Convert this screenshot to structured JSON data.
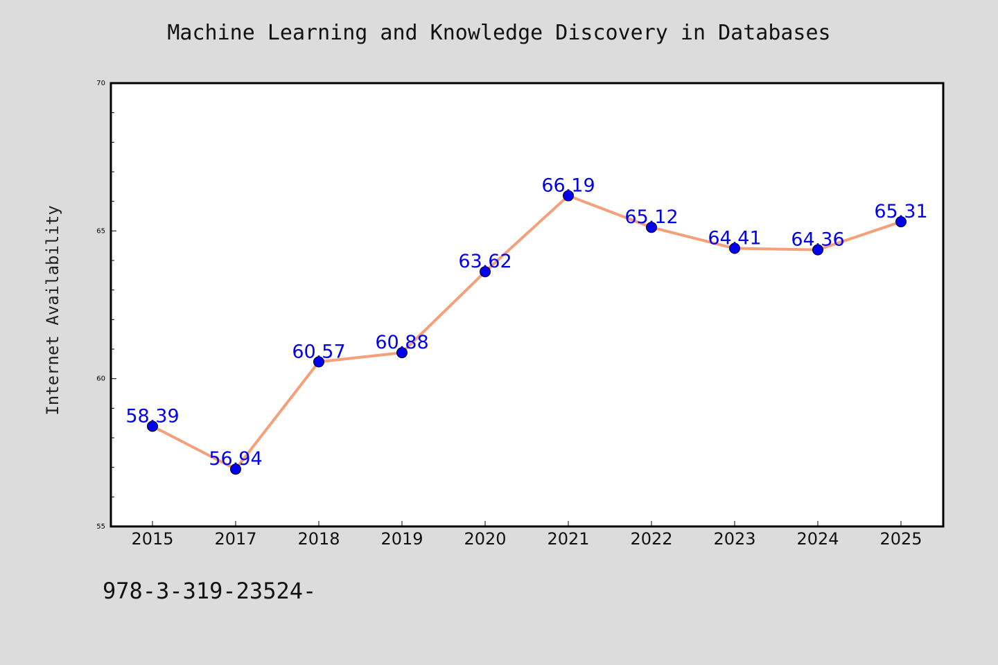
{
  "chart_data": {
    "type": "line",
    "title": "Machine Learning and Knowledge Discovery in Databases",
    "xlabel": "",
    "ylabel": "Internet Availability",
    "categories": [
      "2015",
      "2017",
      "2018",
      "2019",
      "2020",
      "2021",
      "2022",
      "2023",
      "2024",
      "2025"
    ],
    "values": [
      58.39,
      56.94,
      60.57,
      60.88,
      63.62,
      66.19,
      65.12,
      64.41,
      64.36,
      65.31
    ],
    "data_labels": [
      "58.39",
      "56.94",
      "60.57",
      "60.88",
      "63.62",
      "66.19",
      "65.12",
      "64.41",
      "64.36",
      "65.31"
    ],
    "ylim": [
      55,
      70
    ],
    "y_major_ticks": [
      55,
      60,
      65,
      70
    ],
    "y_minor_step": 1,
    "grid": false,
    "line_color": "#f4a07a",
    "marker_color": "#0000ee",
    "label_color": "#0000ee"
  },
  "footer": {
    "code": "978-3-319-23524-"
  }
}
